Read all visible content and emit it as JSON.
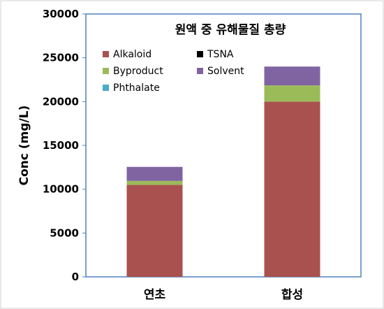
{
  "chart_data": {
    "type": "bar",
    "stacked": true,
    "title": "원액 중 유해물질 총량",
    "ylabel": "Conc (mg/L)",
    "xlabel": "",
    "categories": [
      "연초",
      "합성"
    ],
    "ylim": [
      0,
      30000
    ],
    "yticks": [
      0,
      5000,
      10000,
      15000,
      20000,
      25000,
      30000
    ],
    "grid": false,
    "legend_position": "top-left inside plot",
    "series": [
      {
        "name": "Alkaloid",
        "values": [
          10500,
          20000
        ],
        "color": "#a9514f"
      },
      {
        "name": "TSNA",
        "values": [
          0,
          0
        ],
        "color": "#000000"
      },
      {
        "name": "Byproduct",
        "values": [
          450,
          1850
        ],
        "color": "#9bbb59"
      },
      {
        "name": "Solvent",
        "values": [
          1600,
          2150
        ],
        "color": "#8064a2"
      },
      {
        "name": "Phthalate",
        "values": [
          0,
          0
        ],
        "color": "#4bacc6"
      }
    ]
  }
}
